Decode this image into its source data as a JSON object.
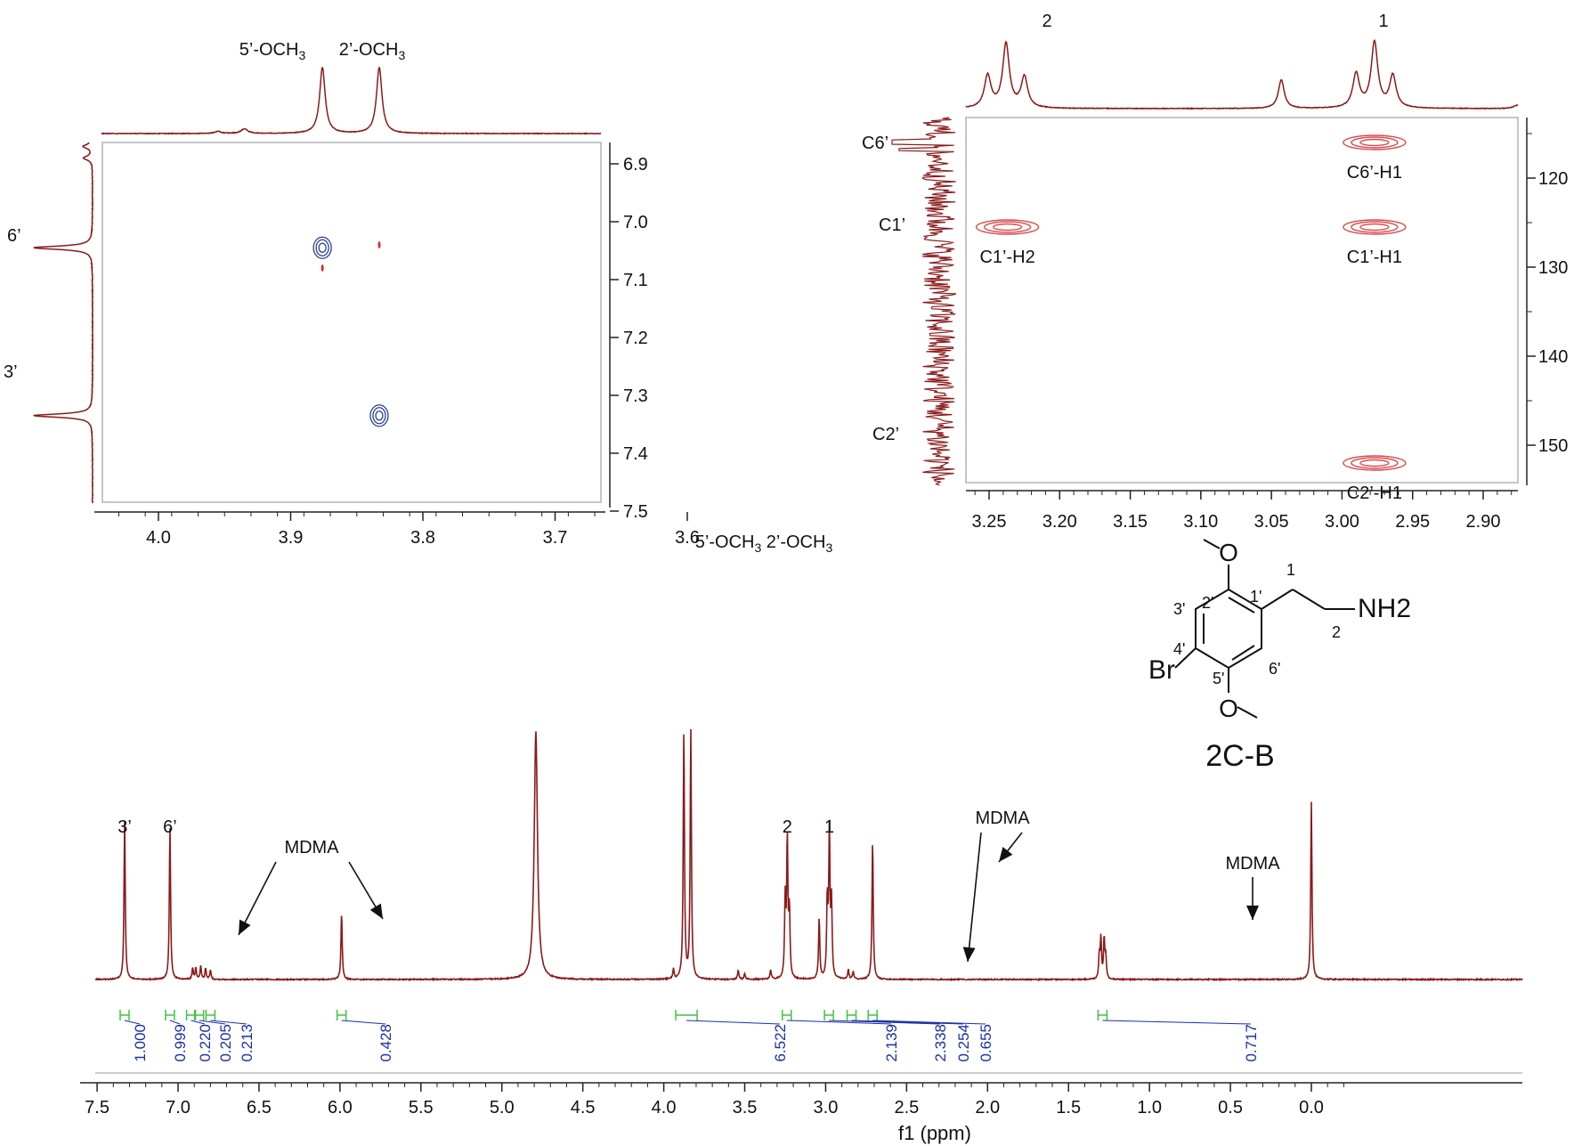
{
  "chart_data": [
    {
      "id": "main",
      "type": "line",
      "xlabel": "f1 (ppm)",
      "xlim": [
        7.6,
        -0.3
      ],
      "x_reversed": true,
      "xticks": [
        "7.5",
        "7.0",
        "6.5",
        "6.0",
        "5.5",
        "5.0",
        "4.5",
        "4.0",
        "3.5",
        "3.0",
        "2.5",
        "2.0",
        "1.5",
        "1.0",
        "0.5",
        "0.0"
      ],
      "color": "#8b1a1a",
      "peaks": [
        {
          "x": 7.33,
          "h": 0.83,
          "label": "3’"
        },
        {
          "x": 7.05,
          "h": 0.8,
          "label": "6’"
        },
        {
          "x": 6.91,
          "h": 0.06
        },
        {
          "x": 6.89,
          "h": 0.06
        },
        {
          "x": 6.86,
          "h": 0.07
        },
        {
          "x": 6.83,
          "h": 0.06
        },
        {
          "x": 6.8,
          "h": 0.05
        },
        {
          "x": 5.99,
          "h": 0.35
        },
        {
          "x": 4.79,
          "h": 1.3,
          "w": 0.012
        },
        {
          "x": 3.94,
          "h": 0.05
        },
        {
          "x": 3.876,
          "h": 1.3,
          "label": "5’-OCH3"
        },
        {
          "x": 3.833,
          "h": 1.3,
          "label": "2’-OCH3"
        },
        {
          "x": 3.54,
          "h": 0.05
        },
        {
          "x": 3.5,
          "h": 0.03
        },
        {
          "x": 3.34,
          "h": 0.05
        },
        {
          "x": 3.25,
          "h": 0.4
        },
        {
          "x": 3.237,
          "h": 0.72,
          "label": "2"
        },
        {
          "x": 3.224,
          "h": 0.34
        },
        {
          "x": 3.04,
          "h": 0.32
        },
        {
          "x": 2.99,
          "h": 0.4
        },
        {
          "x": 2.977,
          "h": 0.76,
          "label": "1"
        },
        {
          "x": 2.964,
          "h": 0.38
        },
        {
          "x": 2.86,
          "h": 0.05
        },
        {
          "x": 2.83,
          "h": 0.04
        },
        {
          "x": 2.71,
          "h": 0.73
        },
        {
          "x": 1.31,
          "h": 0.12
        },
        {
          "x": 1.3,
          "h": 0.21
        },
        {
          "x": 1.28,
          "h": 0.21
        },
        {
          "x": 1.27,
          "h": 0.11
        },
        {
          "x": 0.0,
          "h": 0.93
        }
      ],
      "integrals": [
        {
          "x": 7.33,
          "value": "1.000"
        },
        {
          "x": 7.05,
          "value": "0.999"
        },
        {
          "x": 6.92,
          "value": "0.220"
        },
        {
          "x": 6.87,
          "value": "0.205"
        },
        {
          "x": 6.8,
          "value": "0.213"
        },
        {
          "x": 5.99,
          "value": "0.428"
        },
        {
          "x": 3.86,
          "value": "6.522"
        },
        {
          "x": 3.24,
          "value": "2.139"
        },
        {
          "x": 2.98,
          "value": "2.338"
        },
        {
          "x": 2.84,
          "value": "0.254"
        },
        {
          "x": 2.71,
          "value": "0.655"
        },
        {
          "x": 1.29,
          "value": "0.717"
        }
      ],
      "annotations": [
        {
          "text": "MDMA",
          "points_to": [
            6.81,
            5.99
          ]
        },
        {
          "text": "MDMA",
          "points_to": [
            2.84,
            2.71
          ]
        },
        {
          "text": "MDMA",
          "points_to": [
            1.29
          ]
        }
      ]
    },
    {
      "id": "noesy-inset",
      "type": "contour",
      "x_axis": {
        "lim": [
          4.05,
          3.6
        ],
        "ticks": [
          "4.0",
          "3.9",
          "3.8",
          "3.7",
          "3.6"
        ]
      },
      "y_axis": {
        "lim": [
          6.85,
          7.55
        ],
        "ticks": [
          "6.9",
          "7.0",
          "7.1",
          "7.2",
          "7.3",
          "7.4",
          "7.5"
        ]
      },
      "top_trace_labels": [
        "5’-OCH3",
        "2’-OCH3"
      ],
      "side_trace_labels": [
        "6’",
        "3’"
      ],
      "cross_peaks": [
        {
          "x": 3.876,
          "y": 7.045,
          "color": "#2a3f9e"
        },
        {
          "x": 3.833,
          "y": 7.335,
          "color": "#2a3f9e"
        },
        {
          "x": 3.876,
          "y": 7.08,
          "color": "#d03030"
        },
        {
          "x": 3.833,
          "y": 7.04,
          "color": "#d03030"
        }
      ]
    },
    {
      "id": "hmbc-inset",
      "type": "contour",
      "x_axis": {
        "lim": [
          3.3,
          2.87
        ],
        "ticks": [
          "3.25",
          "3.20",
          "3.15",
          "3.10",
          "3.05",
          "3.00",
          "2.95",
          "2.90"
        ]
      },
      "y_axis": {
        "lim": [
          114,
          156
        ],
        "ticks": [
          "120",
          "130",
          "140",
          "150"
        ]
      },
      "top_trace_labels": [
        "2",
        "1"
      ],
      "side_trace_labels": [
        "C6’",
        "C1’",
        "C2’"
      ],
      "cross_peaks": [
        {
          "x": 2.977,
          "y": 116.0,
          "label": "C6’-H1"
        },
        {
          "x": 3.237,
          "y": 125.5,
          "label": "C1’-H2"
        },
        {
          "x": 2.977,
          "y": 125.5,
          "label": "C1’-H1"
        },
        {
          "x": 2.977,
          "y": 152.0,
          "label": "C2’-H1"
        }
      ]
    }
  ],
  "structure": {
    "name": "2C-B",
    "atoms": [
      "2'",
      "1'",
      "3'",
      "4'",
      "5'",
      "6'",
      "1",
      "2"
    ],
    "groups": [
      "NH2",
      "Br",
      "O",
      "O"
    ]
  }
}
